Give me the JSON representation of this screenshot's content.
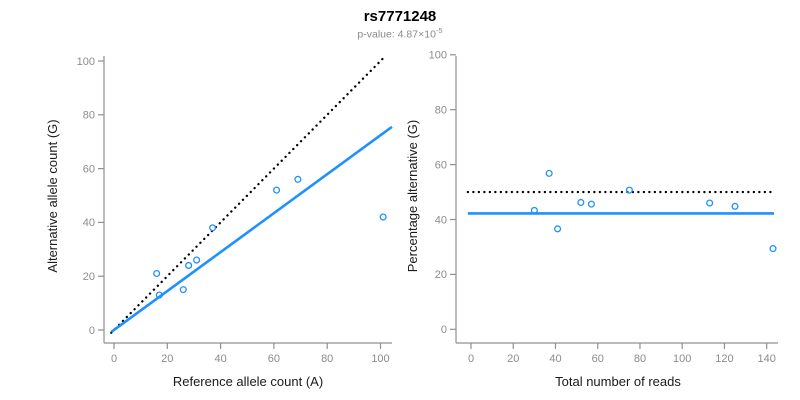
{
  "header": {
    "title": "rs7771248",
    "subtitle_prefix": "p-value: 4.87×10",
    "subtitle_exponent": "-5"
  },
  "colors": {
    "accent_blue": "#1E90FF",
    "line_black": "#000000",
    "axis_gray": "#909090",
    "tick_label_gray": "#8c8c8c",
    "subtitle_gray": "#8a8a8a"
  },
  "chart_data": [
    {
      "type": "scatter",
      "title": "rs7771248",
      "subtitle": "p-value: 4.87×10^-5",
      "xlabel": "Reference allele count (A)",
      "ylabel": "Alternative allele count (G)",
      "xlim": [
        0,
        100
      ],
      "ylim": [
        0,
        100
      ],
      "xticks": [
        0,
        20,
        40,
        60,
        80,
        100
      ],
      "yticks": [
        0,
        20,
        40,
        60,
        80,
        100
      ],
      "grid": false,
      "legend": "none",
      "points": [
        [
          16,
          21
        ],
        [
          17,
          13
        ],
        [
          26,
          15
        ],
        [
          28,
          24
        ],
        [
          31,
          26
        ],
        [
          37,
          38
        ],
        [
          61,
          52
        ],
        [
          69,
          56
        ],
        [
          101,
          42
        ]
      ],
      "lines": [
        {
          "name": "identity-line",
          "style": "dotted",
          "color": "#000000",
          "slope": 1,
          "intercept": 0
        },
        {
          "name": "fit-line",
          "style": "solid",
          "color": "#1E90FF",
          "slope": 0.724,
          "intercept": 0
        }
      ]
    },
    {
      "type": "scatter",
      "xlabel": "Total number of reads",
      "ylabel": "Percentage alternative (G)",
      "xlim": [
        0,
        140
      ],
      "ylim": [
        0,
        100
      ],
      "xticks": [
        0,
        20,
        40,
        60,
        80,
        100,
        120,
        140
      ],
      "yticks": [
        0,
        20,
        40,
        60,
        80,
        100
      ],
      "grid": false,
      "legend": "none",
      "points": [
        [
          30,
          43.3
        ],
        [
          37,
          56.8
        ],
        [
          41,
          36.6
        ],
        [
          52,
          46.2
        ],
        [
          57,
          45.6
        ],
        [
          75,
          50.7
        ],
        [
          113,
          46.0
        ],
        [
          125,
          44.8
        ],
        [
          143,
          29.4
        ]
      ],
      "lines": [
        {
          "name": "expected-50pct-line",
          "style": "dotted",
          "color": "#000000",
          "slope": 0,
          "intercept": 50
        },
        {
          "name": "fit-line",
          "style": "solid",
          "color": "#1E90FF",
          "slope": 0,
          "intercept": 42.2
        }
      ]
    }
  ]
}
